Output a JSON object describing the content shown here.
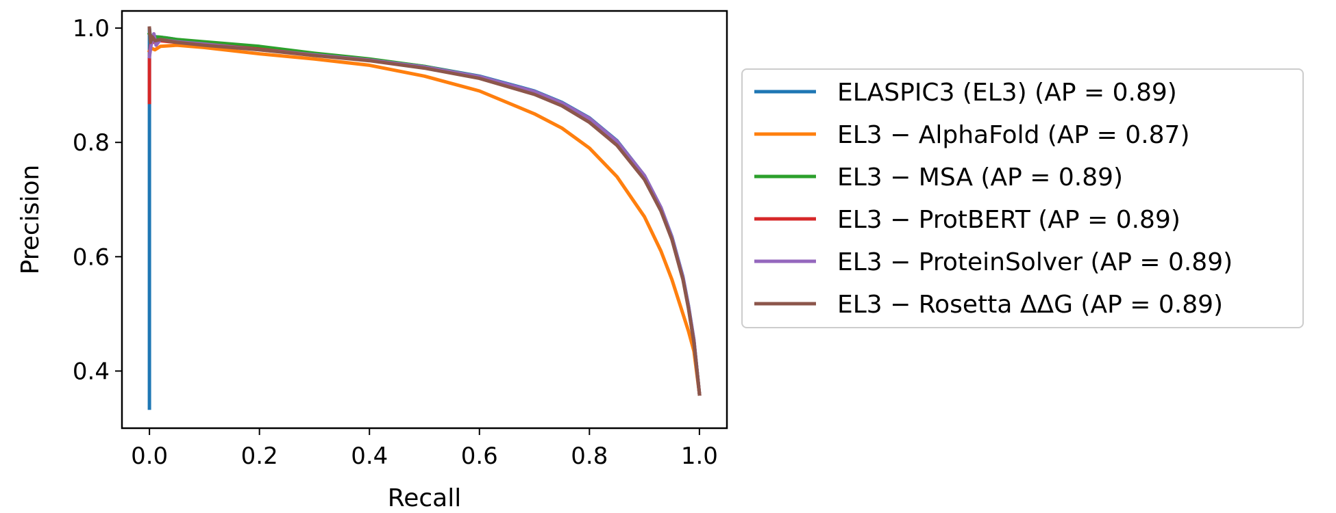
{
  "chart_data": {
    "type": "line",
    "title": "",
    "xlabel": "Recall",
    "ylabel": "Precision",
    "xlim": [
      -0.05,
      1.05
    ],
    "ylim": [
      0.3,
      1.03
    ],
    "xticks": [
      0.0,
      0.2,
      0.4,
      0.6,
      0.8,
      1.0
    ],
    "xtick_labels": [
      "0.0",
      "0.2",
      "0.4",
      "0.6",
      "0.8",
      "1.0"
    ],
    "yticks": [
      0.4,
      0.6,
      0.8,
      1.0
    ],
    "ytick_labels": [
      "0.4",
      "0.6",
      "0.8",
      "1.0"
    ],
    "grid": false,
    "legend_position": "right-outside",
    "series": [
      {
        "name": "ELASPIC3 (EL3) (AP = 0.89)",
        "color": "#1f77b4",
        "x": [
          0.0,
          0.0,
          0.0,
          0.002,
          0.01,
          0.03,
          0.05,
          0.1,
          0.2,
          0.3,
          0.4,
          0.5,
          0.6,
          0.7,
          0.75,
          0.8,
          0.85,
          0.9,
          0.93,
          0.95,
          0.97,
          0.98,
          0.99,
          1.0
        ],
        "y": [
          0.335,
          0.86,
          1.0,
          0.98,
          0.985,
          0.983,
          0.98,
          0.975,
          0.965,
          0.955,
          0.945,
          0.933,
          0.916,
          0.89,
          0.87,
          0.843,
          0.803,
          0.742,
          0.686,
          0.635,
          0.565,
          0.515,
          0.455,
          0.36
        ]
      },
      {
        "name": "EL3 − AlphaFold (AP = 0.87)",
        "color": "#ff7f0e",
        "x": [
          0.0,
          0.003,
          0.01,
          0.02,
          0.05,
          0.1,
          0.2,
          0.3,
          0.4,
          0.5,
          0.6,
          0.7,
          0.75,
          0.8,
          0.85,
          0.9,
          0.93,
          0.95,
          0.97,
          0.98,
          0.99,
          1.0
        ],
        "y": [
          0.96,
          0.965,
          0.962,
          0.968,
          0.97,
          0.966,
          0.955,
          0.946,
          0.935,
          0.916,
          0.89,
          0.85,
          0.825,
          0.79,
          0.74,
          0.67,
          0.61,
          0.56,
          0.5,
          0.47,
          0.435,
          0.36
        ]
      },
      {
        "name": "EL3 − MSA (AP = 0.89)",
        "color": "#2ca02c",
        "x": [
          0.0,
          0.005,
          0.02,
          0.05,
          0.1,
          0.2,
          0.3,
          0.4,
          0.5,
          0.6,
          0.7,
          0.75,
          0.8,
          0.85,
          0.9,
          0.93,
          0.95,
          0.97,
          0.98,
          0.99,
          1.0
        ],
        "y": [
          0.99,
          0.985,
          0.984,
          0.98,
          0.976,
          0.968,
          0.956,
          0.946,
          0.933,
          0.915,
          0.888,
          0.868,
          0.84,
          0.8,
          0.74,
          0.684,
          0.632,
          0.562,
          0.512,
          0.452,
          0.36
        ]
      },
      {
        "name": "EL3 − ProtBERT (AP = 0.89)",
        "color": "#d62728",
        "x": [
          0.0,
          0.0,
          0.002,
          0.005,
          0.02,
          0.05,
          0.1,
          0.2,
          0.3,
          0.4,
          0.5,
          0.6,
          0.7,
          0.75,
          0.8,
          0.85,
          0.9,
          0.93,
          0.95,
          0.97,
          0.98,
          0.99,
          1.0
        ],
        "y": [
          0.87,
          0.95,
          0.97,
          0.975,
          0.978,
          0.975,
          0.972,
          0.963,
          0.953,
          0.944,
          0.931,
          0.913,
          0.886,
          0.866,
          0.838,
          0.798,
          0.738,
          0.683,
          0.632,
          0.562,
          0.512,
          0.452,
          0.36
        ]
      },
      {
        "name": "EL3 − ProteinSolver (AP = 0.89)",
        "color": "#9467bd",
        "x": [
          0.0,
          0.003,
          0.008,
          0.012,
          0.02,
          0.05,
          0.1,
          0.2,
          0.3,
          0.4,
          0.5,
          0.6,
          0.7,
          0.75,
          0.8,
          0.85,
          0.9,
          0.93,
          0.95,
          0.97,
          0.98,
          0.99,
          1.0
        ],
        "y": [
          0.95,
          0.97,
          0.99,
          0.97,
          0.98,
          0.976,
          0.972,
          0.962,
          0.953,
          0.944,
          0.932,
          0.915,
          0.889,
          0.869,
          0.842,
          0.802,
          0.742,
          0.686,
          0.634,
          0.564,
          0.514,
          0.454,
          0.36
        ]
      },
      {
        "name": "EL3 − Rosetta ΔΔG (AP = 0.89)",
        "color": "#8c564b",
        "x": [
          0.0,
          0.002,
          0.005,
          0.01,
          0.02,
          0.05,
          0.1,
          0.2,
          0.3,
          0.4,
          0.5,
          0.6,
          0.7,
          0.75,
          0.8,
          0.85,
          0.9,
          0.93,
          0.95,
          0.97,
          0.98,
          0.99,
          1.0
        ],
        "y": [
          1.0,
          0.975,
          0.985,
          0.978,
          0.98,
          0.975,
          0.97,
          0.962,
          0.952,
          0.943,
          0.93,
          0.912,
          0.884,
          0.864,
          0.835,
          0.795,
          0.735,
          0.68,
          0.63,
          0.56,
          0.51,
          0.45,
          0.36
        ]
      }
    ]
  }
}
